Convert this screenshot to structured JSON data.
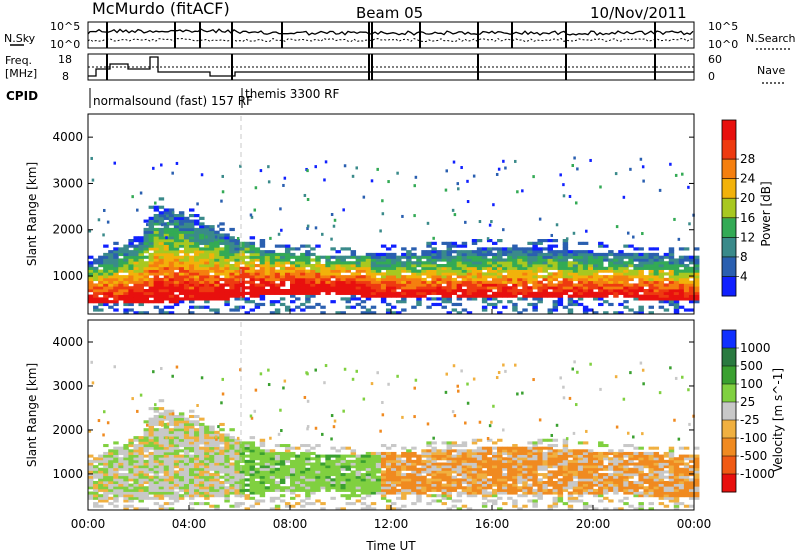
{
  "header": {
    "station": "McMurdo (fitACF)",
    "beam": "Beam 05",
    "date": "10/Nov/2011"
  },
  "noise_panel": {
    "left_label": "N.Sky",
    "right_label": "N.Search",
    "left_ticks": [
      "10^5",
      "10^0"
    ],
    "right_ticks": [
      "10^5",
      "10^0"
    ]
  },
  "freq_panel": {
    "left_label_line1": "Freq.",
    "left_label_line2": "[MHz]",
    "right_label": "Nave",
    "left_ticks": [
      "18",
      "8"
    ],
    "right_ticks": [
      "60",
      "0"
    ]
  },
  "cpid": {
    "label": "CPID",
    "entries": [
      {
        "text": "normalsound (fast) 157 RF"
      },
      {
        "text": "themis 3300 RF"
      }
    ]
  },
  "chart_data": [
    {
      "type": "heatmap",
      "name": "power",
      "ylabel": "Slant Range [km]",
      "xlabel": "Time UT",
      "x_ticks": [
        "00:00",
        "04:00",
        "08:00",
        "12:00",
        "16:00",
        "20:00",
        "00:00"
      ],
      "y_ticks": [
        "1000",
        "2000",
        "3000",
        "4000"
      ],
      "x_range_hours": [
        0,
        24
      ],
      "ylim": [
        180,
        4500
      ],
      "colorbar": {
        "label": "Power [dB]",
        "ticks": [
          "4",
          "8",
          "12",
          "16",
          "20",
          "24",
          "28"
        ],
        "colors": [
          "#1020ff",
          "#2a5fb0",
          "#3a8a8a",
          "#33aa55",
          "#a8c820",
          "#f2b20a",
          "#f57f0f",
          "#ee3a10",
          "#e8100e"
        ]
      },
      "echo_extent": [
        {
          "hour": 0.0,
          "low_km": 400,
          "high_km": 1300
        },
        {
          "hour": 2.0,
          "low_km": 400,
          "high_km": 1800
        },
        {
          "hour": 2.6,
          "low_km": 400,
          "high_km": 2500
        },
        {
          "hour": 5.0,
          "low_km": 450,
          "high_km": 2000
        },
        {
          "hour": 7.0,
          "low_km": 550,
          "high_km": 1500
        },
        {
          "hour": 10.0,
          "low_km": 550,
          "high_km": 1400
        },
        {
          "hour": 13.0,
          "low_km": 500,
          "high_km": 1500
        },
        {
          "hour": 17.0,
          "low_km": 500,
          "high_km": 1600
        },
        {
          "hour": 20.0,
          "low_km": 500,
          "high_km": 1500
        },
        {
          "hour": 24.0,
          "low_km": 450,
          "high_km": 1400
        }
      ]
    },
    {
      "type": "heatmap",
      "name": "velocity",
      "ylabel": "Slant Range [km]",
      "xlabel": "Time UT",
      "x_ticks": [
        "00:00",
        "04:00",
        "08:00",
        "12:00",
        "16:00",
        "20:00",
        "00:00"
      ],
      "y_ticks": [
        "1000",
        "2000",
        "3000",
        "4000"
      ],
      "x_range_hours": [
        0,
        24
      ],
      "ylim": [
        180,
        4500
      ],
      "colorbar": {
        "label": "Velocity [m s^-1]",
        "ticks": [
          "1000",
          "500",
          "100",
          "25",
          "-25",
          "-100",
          "-500",
          "-1000"
        ],
        "colors": [
          "#1030ff",
          "#2a7a40",
          "#3aa030",
          "#80d040",
          "#c8c8c8",
          "#f0b040",
          "#f08a20",
          "#f05a14",
          "#e8100e"
        ]
      },
      "velocity_regions": [
        {
          "from_hour": 0,
          "to_hour": 6,
          "dominant": "green / grey"
        },
        {
          "from_hour": 6,
          "to_hour": 11.5,
          "dominant": "green"
        },
        {
          "from_hour": 11.5,
          "to_hour": 24,
          "dominant": "orange"
        }
      ]
    }
  ],
  "xlabel": "Time UT"
}
